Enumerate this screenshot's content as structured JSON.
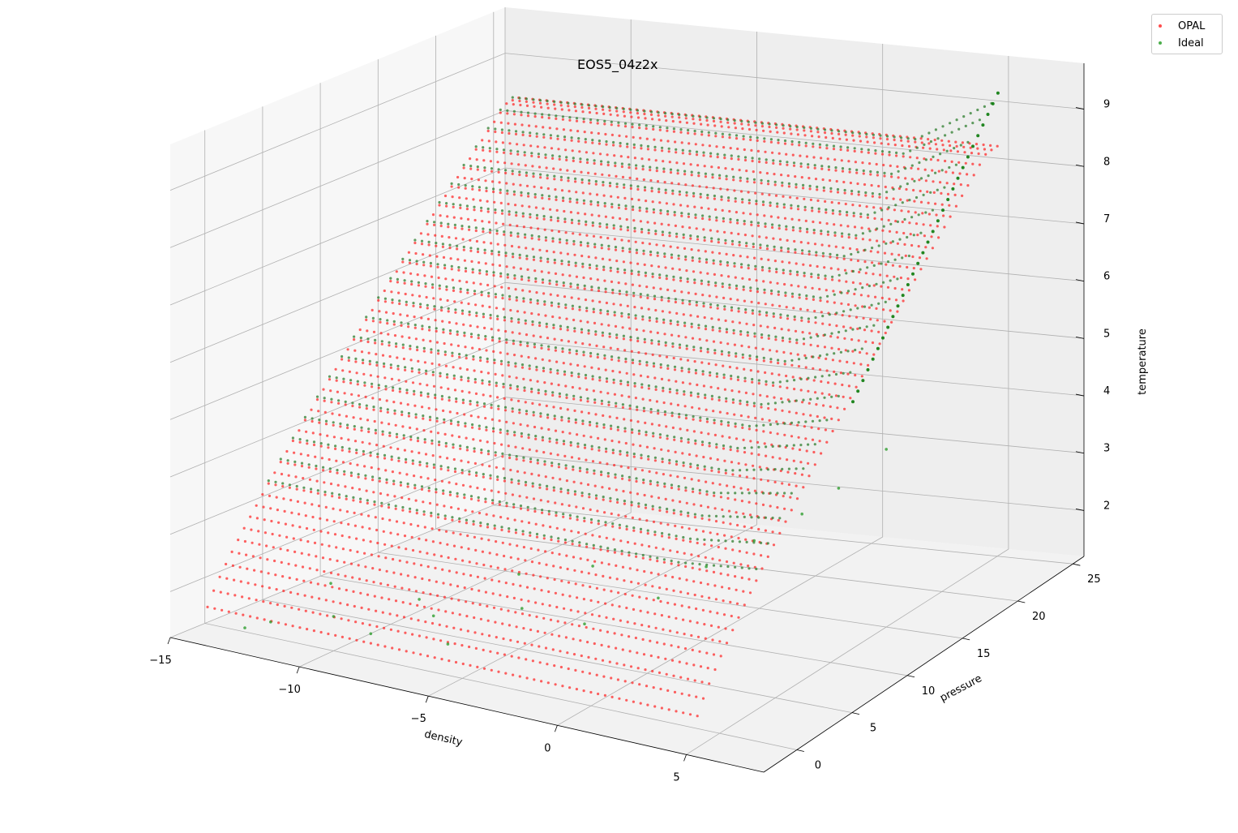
{
  "chart_data": {
    "type": "scatter",
    "projection": "3d",
    "title": "EOS5_04z2x",
    "xlabel": "density",
    "ylabel": "pressure",
    "zlabel": "temperature",
    "xlim": [
      -15,
      8
    ],
    "ylim": [
      -3,
      26
    ],
    "zlim": [
      1.2,
      9.8
    ],
    "x_ticks": [
      "−15",
      "−10",
      "−5",
      "0",
      "5"
    ],
    "x_tick_values": [
      -15,
      -10,
      -5,
      0,
      5
    ],
    "y_ticks": [
      "0",
      "5",
      "10",
      "15",
      "20",
      "25"
    ],
    "y_tick_values": [
      0,
      5,
      10,
      15,
      20,
      25
    ],
    "z_ticks": [
      "2",
      "3",
      "4",
      "5",
      "6",
      "7",
      "8",
      "9"
    ],
    "z_tick_values": [
      2,
      3,
      4,
      5,
      6,
      7,
      8,
      9
    ],
    "grid": true,
    "legend_position": "top-right",
    "series": [
      {
        "name": "OPAL",
        "color": "#ff0000",
        "marker": "dot",
        "description_of_extent": {
          "temperature_range": [
            1.7,
            8.5
          ],
          "density_range": [
            -14,
            5
          ],
          "pressure_range": [
            -2,
            25
          ]
        }
      },
      {
        "name": "Ideal",
        "color": "#008000",
        "marker": "dot",
        "description_of_extent": {
          "temperature_range": [
            1.4,
            9.3
          ],
          "density_range": [
            -14,
            5
          ],
          "pressure_range": [
            -2,
            26
          ]
        }
      }
    ]
  },
  "legend": {
    "items": [
      {
        "label": "OPAL",
        "color": "#ff0000"
      },
      {
        "label": "Ideal",
        "color": "#008000"
      }
    ]
  }
}
